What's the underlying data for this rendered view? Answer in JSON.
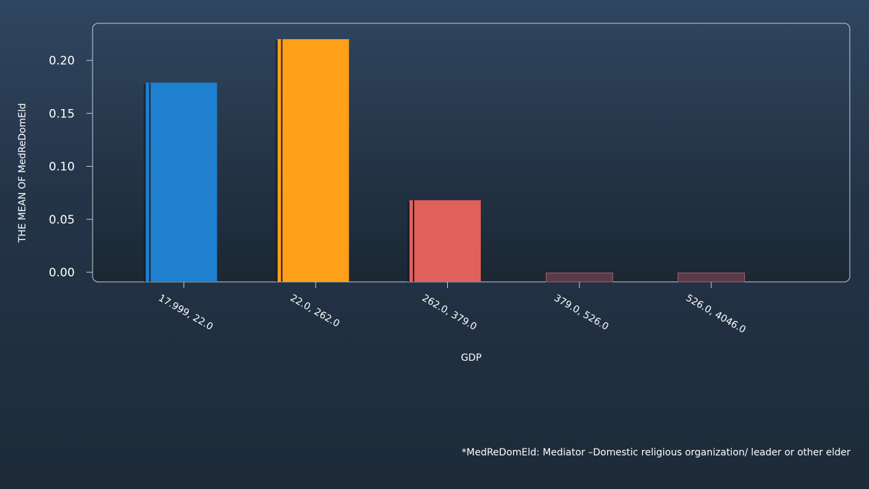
{
  "chart_data": {
    "type": "bar",
    "categories": [
      "17.999, 22.0",
      "22.0, 262.0",
      "262.0, 379.0",
      "379.0, 526.0",
      "526.0, 4046.0"
    ],
    "values": [
      0.179,
      0.22,
      0.068,
      -0.007,
      -0.008
    ],
    "colors": [
      "#2080d0",
      "#ffa018",
      "#e0605a",
      "#5a3a48",
      "#5a3a48"
    ],
    "xlabel": "GDP",
    "ylabel": "THE MEAN OF MedReDomEld",
    "yticks": [
      "0.00",
      "0.05",
      "0.10",
      "0.15",
      "0.20"
    ],
    "ylim": [
      -0.009,
      0.227
    ],
    "grid": false
  },
  "footnote": "*MedReDomEld: Mediator –Domestic religious organization/ leader or other elder"
}
